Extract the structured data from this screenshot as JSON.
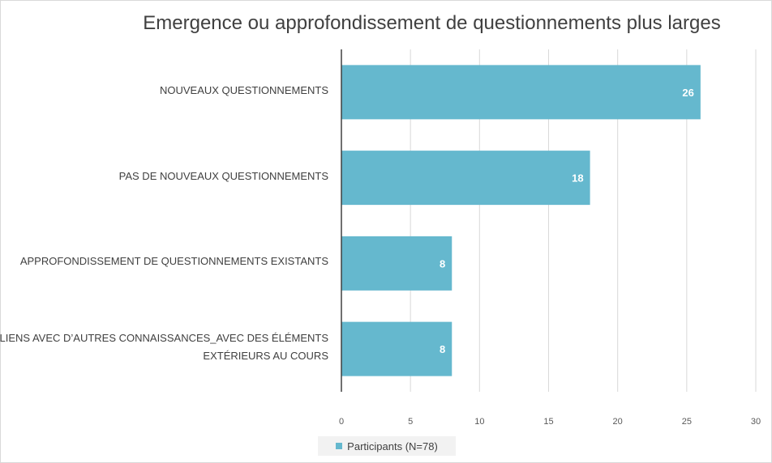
{
  "chart_data": {
    "type": "bar",
    "orientation": "horizontal",
    "title": "Emergence ou approfondissement de questionnements plus larges",
    "categories": [
      "NOUVEAUX QUESTIONNEMENTS",
      "PAS DE NOUVEAUX QUESTIONNEMENTS",
      "APPROFONDISSEMENT DE QUESTIONNEMENTS EXISTANTS",
      "LIENS AVEC D’AUTRES CONNAISSANCES_AVEC DES ÉLÉMENTS EXTÉRIEURS AU COURS"
    ],
    "series": [
      {
        "name": "Participants (N=78)",
        "values": [
          26,
          18,
          8,
          8
        ],
        "color": "#65B8CE"
      }
    ],
    "xlim": [
      0,
      30
    ],
    "xticks": [
      0,
      5,
      10,
      15,
      20,
      25,
      30
    ],
    "grid": "vertical",
    "legend": "bottom",
    "data_labels": true
  }
}
